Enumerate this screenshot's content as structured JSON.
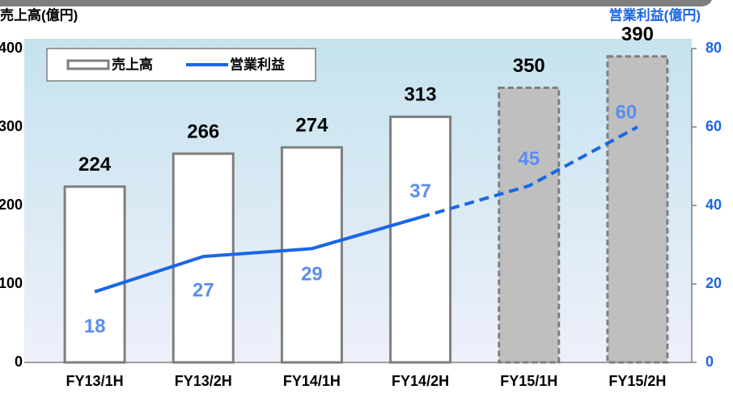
{
  "chart_data": {
    "type": "bar_line",
    "y_title": "売上高(億円)",
    "y2_title": "営業利益(億円)",
    "categories": [
      "FY13/1H",
      "FY13/2H",
      "FY14/1H",
      "FY14/2H",
      "FY15/1H",
      "FY15/2H"
    ],
    "estimate": [
      false,
      false,
      false,
      false,
      true,
      true
    ],
    "series": [
      {
        "name": "売上高",
        "type": "bar",
        "color": "#ffffff",
        "estimate_color": "#bfbfbf",
        "values": [
          224,
          266,
          274,
          313,
          350,
          390
        ]
      },
      {
        "name": "営業利益",
        "type": "line",
        "axis": "y2",
        "color": "#1a66e6",
        "label_color": "#5b8def",
        "values": [
          18,
          27,
          29,
          37,
          45,
          60
        ]
      }
    ],
    "ylim": [
      0,
      400
    ],
    "yticks": [
      0,
      100,
      200,
      300,
      400
    ],
    "y2lim": [
      0,
      80
    ],
    "y2ticks": [
      0,
      20,
      40,
      60,
      80
    ],
    "legend": "top-left"
  }
}
